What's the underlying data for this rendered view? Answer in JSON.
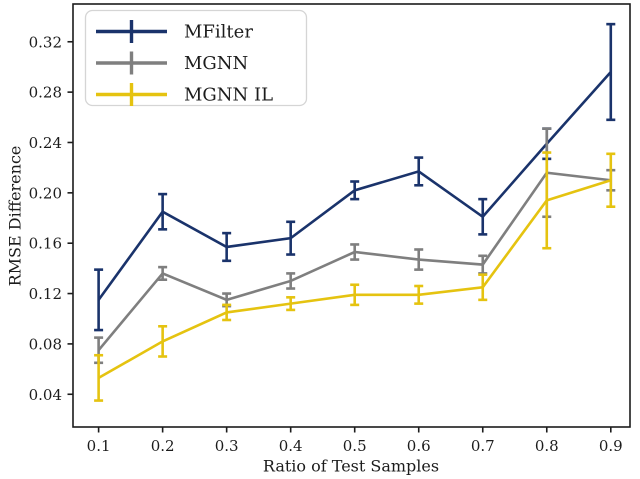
{
  "figure": {
    "background": "#ffffff",
    "frame_color": "#1c1c1c",
    "text_color": "#1c1c1c"
  },
  "legend": {
    "position": "upper-left",
    "border_color": "#d5d5d5",
    "fill_color": "#ffffff",
    "items": [
      {
        "label": "MFilter",
        "color": "#1a336b",
        "icon": "errorbar-cross-icon"
      },
      {
        "label": "MGNN",
        "color": "#7f7f7f",
        "icon": "errorbar-cross-icon"
      },
      {
        "label": "MGNN IL",
        "color": "#e5c310",
        "icon": "errorbar-cross-icon"
      }
    ]
  },
  "chart_data": {
    "type": "line",
    "title": "",
    "xlabel": "Ratio of Test Samples",
    "ylabel": "RMSE Difference",
    "grid": false,
    "error_bars": true,
    "legend_position": "upper left",
    "x": [
      0.1,
      0.2,
      0.3,
      0.4,
      0.5,
      0.6,
      0.7,
      0.8,
      0.9
    ],
    "x_tick_labels": [
      "0.1",
      "0.2",
      "0.3",
      "0.4",
      "0.5",
      "0.6",
      "0.7",
      "0.8",
      "0.9"
    ],
    "y_ticks": [
      0.04,
      0.08,
      0.12,
      0.16,
      0.2,
      0.24,
      0.28,
      0.32
    ],
    "y_tick_labels": [
      "0.04",
      "0.08",
      "0.12",
      "0.16",
      "0.20",
      "0.24",
      "0.28",
      "0.32"
    ],
    "xlim": [
      0.06,
      0.93
    ],
    "ylim": [
      0.014,
      0.35
    ],
    "series": [
      {
        "name": "MFilter",
        "color": "#1a336b",
        "values": [
          0.115,
          0.185,
          0.157,
          0.164,
          0.202,
          0.217,
          0.181,
          0.239,
          0.296
        ],
        "errors": [
          0.024,
          0.014,
          0.011,
          0.013,
          0.007,
          0.011,
          0.014,
          0.012,
          0.038
        ]
      },
      {
        "name": "MGNN",
        "color": "#7f7f7f",
        "values": [
          0.075,
          0.136,
          0.115,
          0.13,
          0.153,
          0.147,
          0.143,
          0.216,
          0.21
        ],
        "errors": [
          0.01,
          0.005,
          0.005,
          0.006,
          0.006,
          0.008,
          0.007,
          0.035,
          0.008
        ]
      },
      {
        "name": "MGNN IL",
        "color": "#e5c310",
        "values": [
          0.053,
          0.082,
          0.105,
          0.112,
          0.119,
          0.119,
          0.125,
          0.194,
          0.21
        ],
        "errors": [
          0.018,
          0.012,
          0.006,
          0.005,
          0.008,
          0.007,
          0.01,
          0.038,
          0.021
        ]
      }
    ]
  }
}
